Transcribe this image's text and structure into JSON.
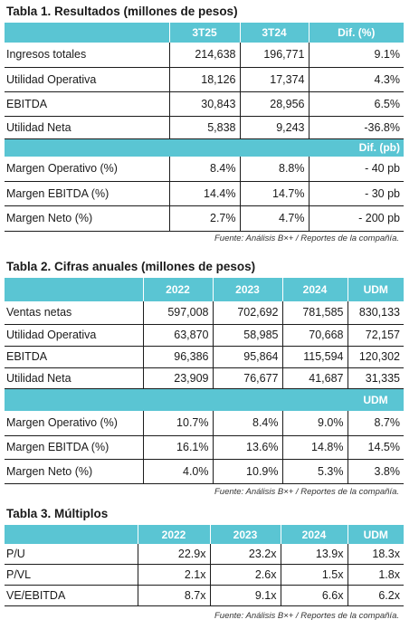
{
  "table1": {
    "title": "Tabla 1. Resultados (millones de pesos)",
    "headers": [
      "",
      "3T25",
      "3T24",
      "Dif. (%)"
    ],
    "rows": [
      {
        "label": "Ingresos totales",
        "values": [
          "214,638",
          "196,771",
          "9.1%"
        ]
      },
      {
        "label": "Utilidad Operativa",
        "values": [
          "18,126",
          "17,374",
          "4.3%"
        ]
      },
      {
        "label": "EBITDA",
        "values": [
          "30,843",
          "28,956",
          "6.5%"
        ]
      },
      {
        "label": "Utilidad Neta",
        "values": [
          "5,838",
          "9,243",
          "-36.8%"
        ]
      }
    ],
    "subheader": "Dif. (pb)",
    "margin_rows": [
      {
        "label": "Margen Operativo (%)",
        "values": [
          "8.4%",
          "8.8%",
          "- 40 pb"
        ]
      },
      {
        "label": "Margen EBITDA (%)",
        "values": [
          "14.4%",
          "14.7%",
          "- 30 pb"
        ]
      },
      {
        "label": "Margen Neto (%)",
        "values": [
          "2.7%",
          "4.7%",
          "- 200 pb"
        ]
      }
    ],
    "source": "Fuente: Análisis B×+ / Reportes de la compañía."
  },
  "table2": {
    "title": "Tabla 2. Cifras anuales (millones de pesos)",
    "headers": [
      "",
      "2022",
      "2023",
      "2024",
      "UDM"
    ],
    "rows": [
      {
        "label": "Ventas netas",
        "values": [
          "597,008",
          "702,692",
          "781,585",
          "830,133"
        ]
      },
      {
        "label": "Utilidad Operativa",
        "values": [
          "63,870",
          "58,985",
          "70,668",
          "72,157"
        ]
      },
      {
        "label": "EBITDA",
        "values": [
          "96,386",
          "95,864",
          "115,594",
          "120,302"
        ]
      },
      {
        "label": "Utilidad Neta",
        "values": [
          "23,909",
          "76,677",
          "41,687",
          "31,335"
        ]
      }
    ],
    "subheader": "UDM",
    "margin_rows": [
      {
        "label": "Margen Operativo (%)",
        "values": [
          "10.7%",
          "8.4%",
          "9.0%",
          "8.7%"
        ]
      },
      {
        "label": "Margen EBITDA (%)",
        "values": [
          "16.1%",
          "13.6%",
          "14.8%",
          "14.5%"
        ]
      },
      {
        "label": "Margen Neto (%)",
        "values": [
          "4.0%",
          "10.9%",
          "5.3%",
          "3.8%"
        ]
      }
    ],
    "source": "Fuente: Análisis B×+ / Reportes de la compañía."
  },
  "table3": {
    "title": "Tabla 3. Múltiplos",
    "headers": [
      "",
      "2022",
      "2023",
      "2024",
      "UDM"
    ],
    "rows": [
      {
        "label": "P/U",
        "values": [
          "22.9x",
          "23.2x",
          "13.9x",
          "18.3x"
        ]
      },
      {
        "label": "P/VL",
        "values": [
          "2.1x",
          "2.6x",
          "1.5x",
          "1.8x"
        ]
      },
      {
        "label": "VE/EBITDA",
        "values": [
          "8.7x",
          "9.1x",
          "6.6x",
          "6.2x"
        ]
      }
    ],
    "source": "Fuente: Análisis B×+ / Reportes de la compañía."
  },
  "colors": {
    "header_bg": "#5ac5d3",
    "header_text": "#ffffff"
  }
}
